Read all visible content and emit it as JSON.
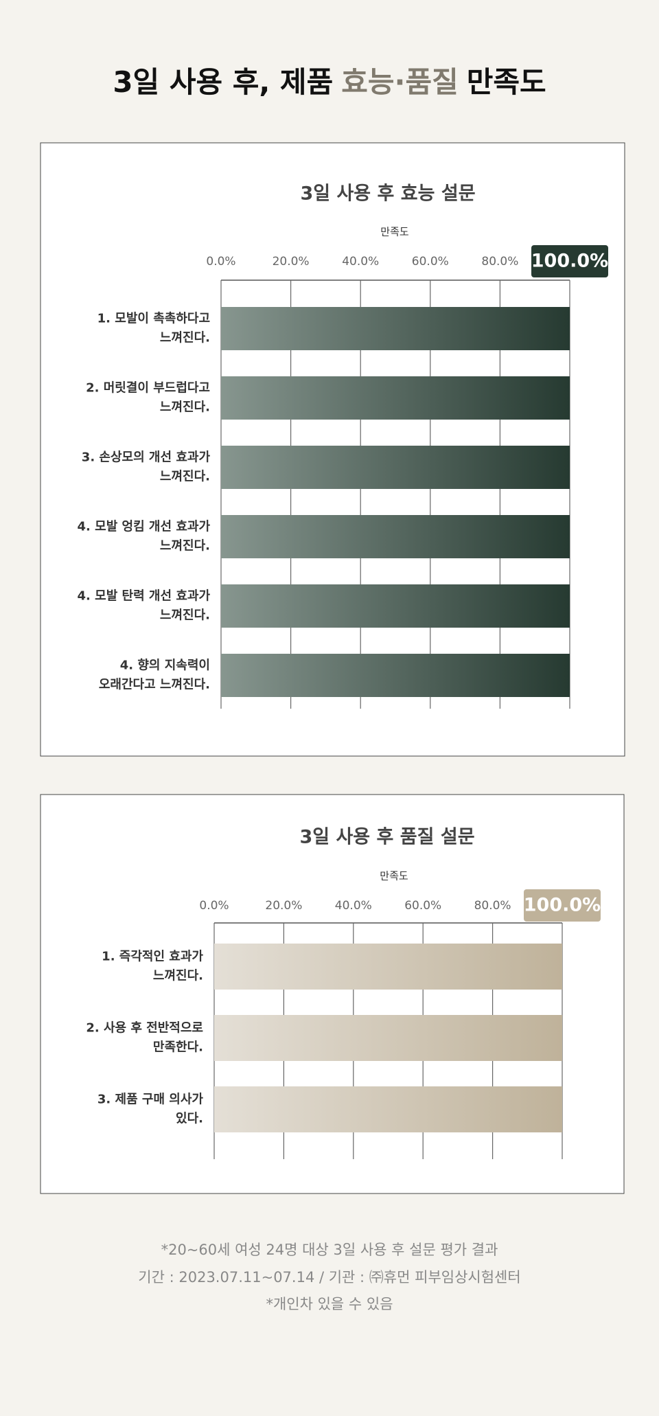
{
  "header": {
    "title_parts": [
      "3일 사용 후, 제품",
      "효능·품질",
      "만족도"
    ]
  },
  "chart_data": [
    {
      "type": "bar",
      "orientation": "horizontal",
      "title": "3일 사용 후 효능 설문",
      "x_label": "만족도",
      "categories": [
        [
          "1. 모발이 촉촉하다고",
          "느껴진다."
        ],
        [
          "2. 머릿결이 부드럽다고",
          "느껴진다."
        ],
        [
          "3. 손상모의 개선 효과가",
          "느껴진다."
        ],
        [
          "4. 모발 엉킴 개선 효과가",
          "느껴진다."
        ],
        [
          "4. 모발 탄력 개선 효과가",
          "느껴진다."
        ],
        [
          "4. 향의 지속력이",
          "오래간다고 느껴진다."
        ]
      ],
      "values": [
        100,
        100,
        100,
        100,
        100,
        100
      ],
      "xlim": [
        0,
        100
      ],
      "xticks": [
        {
          "value": 0,
          "label": "0.0%"
        },
        {
          "value": 20,
          "label": "20.0%"
        },
        {
          "value": 40,
          "label": "40.0%"
        },
        {
          "value": 60,
          "label": "60.0%"
        },
        {
          "value": 80,
          "label": "80.0%"
        },
        {
          "value": 100,
          "label": "100.0%"
        }
      ],
      "grid": true,
      "gradient": [
        "#87968f",
        "#263a31"
      ],
      "highlight_color": "#263a31"
    },
    {
      "type": "bar",
      "orientation": "horizontal",
      "title": "3일 사용 후 품질 설문",
      "x_label": "만족도",
      "categories": [
        [
          "1. 즉각적인 효과가",
          "느껴진다."
        ],
        [
          "2. 사용 후 전반적으로",
          "만족한다."
        ],
        [
          "3. 제품 구매 의사가",
          "있다."
        ]
      ],
      "values": [
        100,
        100,
        100
      ],
      "xlim": [
        0,
        100
      ],
      "xticks": [
        {
          "value": 0,
          "label": "0.0%"
        },
        {
          "value": 20,
          "label": "20.0%"
        },
        {
          "value": 40,
          "label": "40.0%"
        },
        {
          "value": 60,
          "label": "60.0%"
        },
        {
          "value": 80,
          "label": "80.0%"
        },
        {
          "value": 100,
          "label": "100.0%"
        }
      ],
      "grid": true,
      "gradient": [
        "#e4dfd6",
        "#bfb29a"
      ],
      "highlight_color": "#bfb29a"
    }
  ],
  "footnotes": [
    "*20~60세 여성 24명 대상 3일 사용 후 설문 평가 결과",
    "기간 : 2023.07.11~07.14 / 기관 : ㈜휴먼 피부임상시험센터",
    "*개인차 있을 수 있음"
  ]
}
